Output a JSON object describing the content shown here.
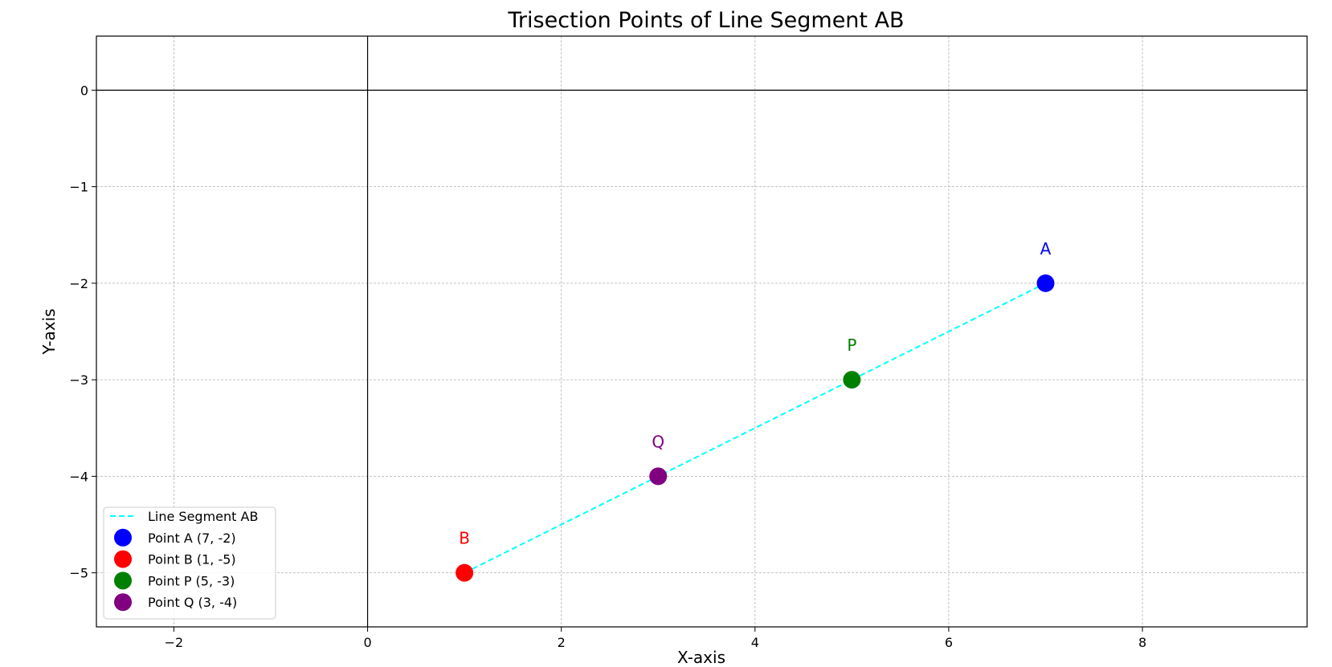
{
  "chart_data": {
    "type": "scatter",
    "title": "Trisection Points of Line Segment AB",
    "xlabel": "X-axis",
    "ylabel": "Y-axis",
    "xlim": [
      -2.8,
      9.7
    ],
    "ylim": [
      -5.56,
      0.56
    ],
    "xticks": [
      -2,
      0,
      2,
      4,
      6,
      8
    ],
    "yticks": [
      0,
      -1,
      -2,
      -3,
      -4,
      -5
    ],
    "xtick_labels": [
      "−2",
      "0",
      "2",
      "4",
      "6",
      "8"
    ],
    "ytick_labels": [
      "0",
      "−1",
      "−2",
      "−3",
      "−4",
      "−5"
    ],
    "grid": true,
    "reference_lines": {
      "x": 0,
      "y": 0
    },
    "line": {
      "name": "Line Segment AB",
      "color": "#00ffff",
      "style": "dashed",
      "x": [
        1,
        7
      ],
      "y": [
        -5,
        -2
      ]
    },
    "points": [
      {
        "label": "A",
        "legend": "Point A (7, -2)",
        "x": 7,
        "y": -2,
        "color": "#0000ff"
      },
      {
        "label": "B",
        "legend": "Point B (1, -5)",
        "x": 1,
        "y": -5,
        "color": "#ff0000"
      },
      {
        "label": "P",
        "legend": "Point P (5, -3)",
        "x": 5,
        "y": -3,
        "color": "#008000"
      },
      {
        "label": "Q",
        "legend": "Point Q (3, -4)",
        "x": 3,
        "y": -4,
        "color": "#800080"
      }
    ],
    "legend_position": "lower-left"
  }
}
